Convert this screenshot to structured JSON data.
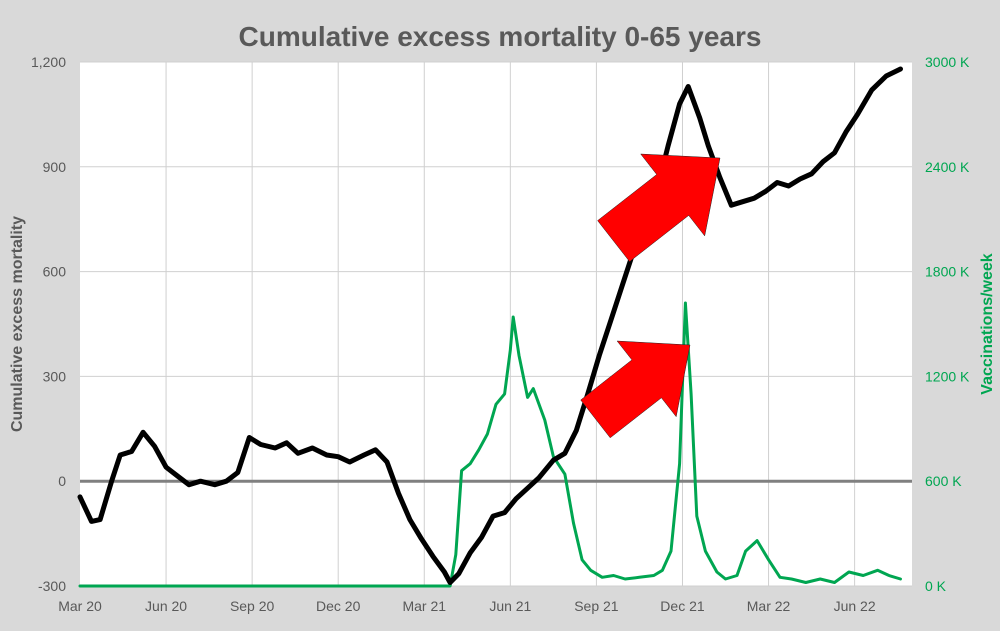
{
  "chart_data": {
    "type": "line",
    "title": "Cumulative excess mortality 0-65 years",
    "ylabel": "Cumulative excess mortality",
    "y2label": "Vaccinations/week",
    "x_tick_labels": [
      "Mar 20",
      "Jun 20",
      "Sep 20",
      "Dec 20",
      "Mar 21",
      "Jun 21",
      "Sep 21",
      "Dec 21",
      "Mar 22",
      "Jun 22"
    ],
    "x_range_months": [
      0,
      29
    ],
    "ylim": [
      -300,
      1200
    ],
    "y_ticks": [
      -300,
      0,
      300,
      600,
      900,
      1200
    ],
    "y_tick_labels": [
      "-300",
      "0",
      "300",
      "600",
      "900",
      "1,200"
    ],
    "y2lim": [
      0,
      3000
    ],
    "y2_ticks": [
      0,
      600,
      1200,
      1800,
      2400,
      3000
    ],
    "y2_tick_labels": [
      "0 K",
      "600 K",
      "1200 K",
      "1800 K",
      "2400 K",
      "3000 K"
    ],
    "grid": "vertical and horizontal",
    "series": [
      {
        "name": "Cumulative excess mortality",
        "axis": "left",
        "color": "#000000",
        "points": [
          [
            0.0,
            -45
          ],
          [
            0.4,
            -115
          ],
          [
            0.7,
            -110
          ],
          [
            1.1,
            0
          ],
          [
            1.4,
            75
          ],
          [
            1.8,
            85
          ],
          [
            2.2,
            140
          ],
          [
            2.6,
            100
          ],
          [
            3.0,
            40
          ],
          [
            3.4,
            15
          ],
          [
            3.8,
            -10
          ],
          [
            4.2,
            0
          ],
          [
            4.7,
            -10
          ],
          [
            5.1,
            0
          ],
          [
            5.5,
            25
          ],
          [
            5.9,
            125
          ],
          [
            6.3,
            105
          ],
          [
            6.8,
            95
          ],
          [
            7.2,
            110
          ],
          [
            7.6,
            80
          ],
          [
            8.1,
            95
          ],
          [
            8.6,
            75
          ],
          [
            9.0,
            70
          ],
          [
            9.4,
            55
          ],
          [
            9.9,
            75
          ],
          [
            10.3,
            90
          ],
          [
            10.7,
            55
          ],
          [
            11.1,
            -35
          ],
          [
            11.5,
            -110
          ],
          [
            11.9,
            -165
          ],
          [
            12.3,
            -215
          ],
          [
            12.7,
            -260
          ],
          [
            12.9,
            -290
          ],
          [
            13.2,
            -265
          ],
          [
            13.6,
            -205
          ],
          [
            14.0,
            -160
          ],
          [
            14.4,
            -100
          ],
          [
            14.8,
            -90
          ],
          [
            15.2,
            -50
          ],
          [
            15.6,
            -20
          ],
          [
            16.0,
            10
          ],
          [
            16.5,
            60
          ],
          [
            16.9,
            80
          ],
          [
            17.3,
            145
          ],
          [
            17.7,
            250
          ],
          [
            18.1,
            360
          ],
          [
            18.5,
            460
          ],
          [
            18.9,
            560
          ],
          [
            19.3,
            660
          ],
          [
            19.7,
            730
          ],
          [
            20.1,
            830
          ],
          [
            20.5,
            960
          ],
          [
            20.9,
            1080
          ],
          [
            21.2,
            1130
          ],
          [
            21.6,
            1040
          ],
          [
            21.9,
            960
          ],
          [
            22.3,
            870
          ],
          [
            22.7,
            790
          ],
          [
            23.1,
            800
          ],
          [
            23.5,
            810
          ],
          [
            23.9,
            830
          ],
          [
            24.3,
            855
          ],
          [
            24.7,
            845
          ],
          [
            25.1,
            865
          ],
          [
            25.5,
            880
          ],
          [
            25.9,
            915
          ],
          [
            26.3,
            940
          ],
          [
            26.7,
            1000
          ],
          [
            27.1,
            1050
          ],
          [
            27.6,
            1120
          ],
          [
            28.1,
            1160
          ],
          [
            28.6,
            1180
          ]
        ]
      },
      {
        "name": "Vaccinations/week",
        "axis": "right",
        "color": "#00a651",
        "points": [
          [
            0.0,
            0
          ],
          [
            12.9,
            0
          ],
          [
            13.1,
            180
          ],
          [
            13.3,
            660
          ],
          [
            13.6,
            700
          ],
          [
            13.9,
            780
          ],
          [
            14.2,
            870
          ],
          [
            14.5,
            1040
          ],
          [
            14.8,
            1100
          ],
          [
            15.0,
            1350
          ],
          [
            15.1,
            1540
          ],
          [
            15.3,
            1320
          ],
          [
            15.6,
            1080
          ],
          [
            15.8,
            1130
          ],
          [
            16.2,
            950
          ],
          [
            16.5,
            740
          ],
          [
            16.9,
            640
          ],
          [
            17.2,
            360
          ],
          [
            17.5,
            150
          ],
          [
            17.8,
            90
          ],
          [
            18.2,
            50
          ],
          [
            18.6,
            60
          ],
          [
            19.0,
            40
          ],
          [
            19.5,
            50
          ],
          [
            20.0,
            60
          ],
          [
            20.3,
            90
          ],
          [
            20.6,
            200
          ],
          [
            20.9,
            700
          ],
          [
            21.1,
            1620
          ],
          [
            21.3,
            1100
          ],
          [
            21.5,
            400
          ],
          [
            21.8,
            200
          ],
          [
            22.2,
            80
          ],
          [
            22.5,
            40
          ],
          [
            22.9,
            60
          ],
          [
            23.2,
            200
          ],
          [
            23.6,
            260
          ],
          [
            24.0,
            150
          ],
          [
            24.4,
            50
          ],
          [
            24.8,
            40
          ],
          [
            25.3,
            20
          ],
          [
            25.8,
            40
          ],
          [
            26.3,
            20
          ],
          [
            26.8,
            80
          ],
          [
            27.3,
            60
          ],
          [
            27.8,
            90
          ],
          [
            28.2,
            60
          ],
          [
            28.6,
            40
          ]
        ]
      }
    ],
    "annotations": [
      {
        "type": "arrow",
        "color": "#ff0000",
        "direction": "up-right",
        "near": "peak of cumulative excess mortality, Jan 22"
      },
      {
        "type": "arrow",
        "color": "#ff0000",
        "direction": "up-right",
        "near": "vaccination peak, Jan 22"
      }
    ]
  }
}
